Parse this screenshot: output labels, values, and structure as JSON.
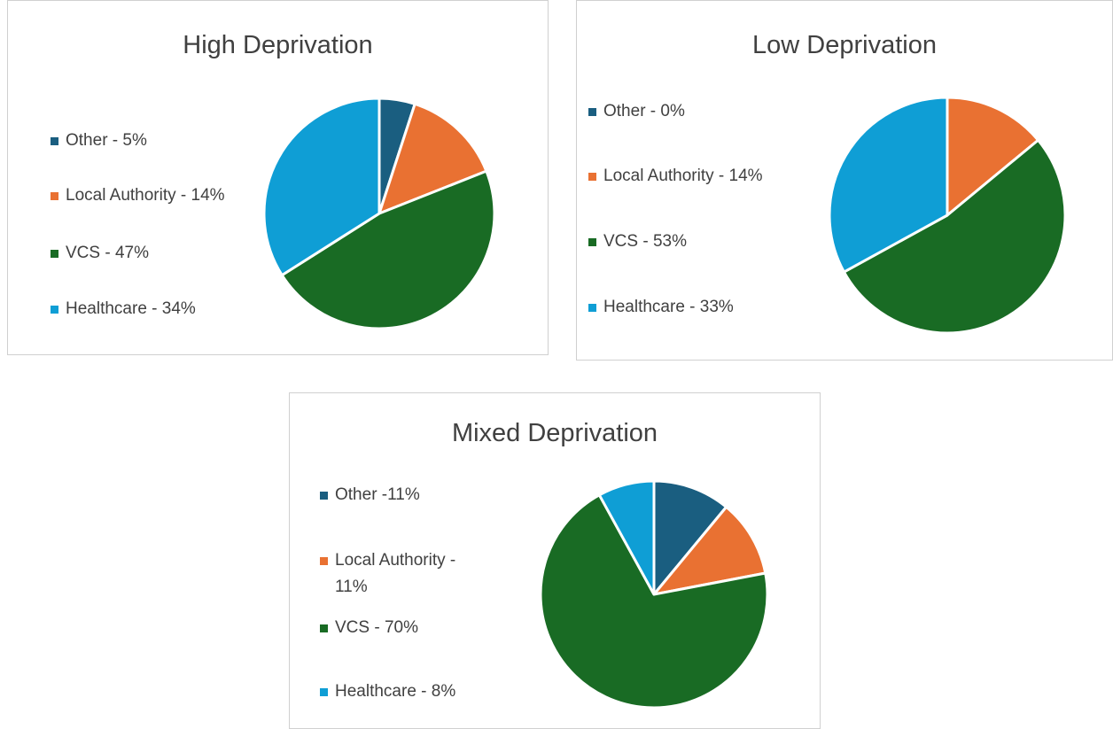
{
  "chart_data": [
    {
      "type": "pie",
      "title": "High Deprivation",
      "categories": [
        "Other - 5%",
        "Local Authority - 14%",
        "VCS - 47%",
        "Healthcare - 34%"
      ],
      "values": [
        5,
        14,
        47,
        34
      ],
      "colors": [
        "#1a5e80",
        "#e97132",
        "#196b24",
        "#0f9ed5"
      ]
    },
    {
      "type": "pie",
      "title": "Low Deprivation",
      "categories": [
        "Other - 0%",
        "Local Authority - 14%",
        "VCS - 53%",
        "Healthcare - 33%"
      ],
      "values": [
        0,
        14,
        53,
        33
      ],
      "colors": [
        "#1a5e80",
        "#e97132",
        "#196b24",
        "#0f9ed5"
      ]
    },
    {
      "type": "pie",
      "title": "Mixed Deprivation",
      "categories": [
        "Other -11%",
        "Local Authority - 11%",
        "VCS - 70%",
        "Healthcare - 8%"
      ],
      "values": [
        11,
        11,
        70,
        8
      ],
      "colors": [
        "#1a5e80",
        "#e97132",
        "#196b24",
        "#0f9ed5"
      ]
    }
  ]
}
